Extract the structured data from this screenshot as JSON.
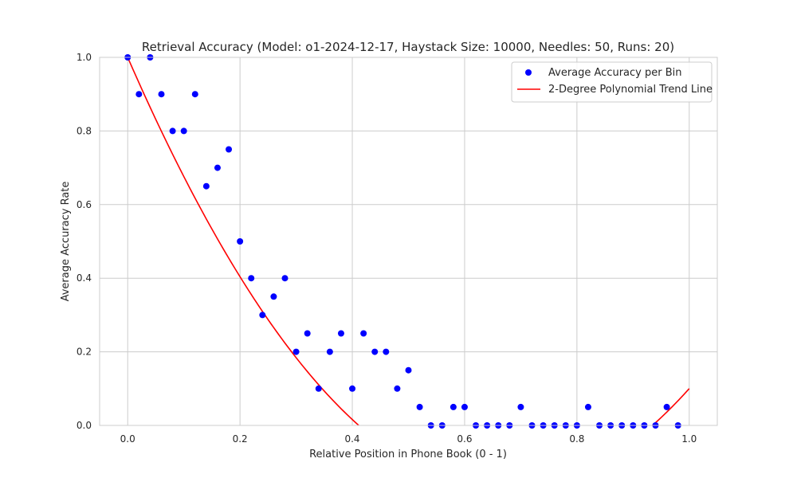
{
  "chart_data": {
    "type": "scatter",
    "title": "Retrieval Accuracy (Model: o1-2024-12-17, Haystack Size: 10000, Needles: 50, Runs: 20)",
    "xlabel": "Relative Position in Phone Book (0 - 1)",
    "ylabel": "Average Accuracy Rate",
    "xlim": [
      -0.05,
      1.05
    ],
    "ylim": [
      0.0,
      1.0
    ],
    "xticks": [
      0.0,
      0.2,
      0.4,
      0.6,
      0.8,
      1.0
    ],
    "xtick_labels": [
      "0.0",
      "0.2",
      "0.4",
      "0.6",
      "0.8",
      "1.0"
    ],
    "yticks": [
      0.0,
      0.2,
      0.4,
      0.6,
      0.8,
      1.0
    ],
    "ytick_labels": [
      "0.0",
      "0.2",
      "0.4",
      "0.6",
      "0.8",
      "1.0"
    ],
    "grid": true,
    "legend_position": "top-right",
    "series": [
      {
        "name": "Average Accuracy per Bin",
        "kind": "scatter",
        "color": "#0000ff",
        "x": [
          0.0,
          0.02,
          0.04,
          0.06,
          0.08,
          0.1,
          0.12,
          0.14,
          0.16,
          0.18,
          0.2,
          0.22,
          0.24,
          0.26,
          0.28,
          0.3,
          0.32,
          0.34,
          0.36,
          0.38,
          0.4,
          0.42,
          0.44,
          0.46,
          0.48,
          0.5,
          0.52,
          0.54,
          0.56,
          0.58,
          0.6,
          0.62,
          0.64,
          0.66,
          0.68,
          0.7,
          0.72,
          0.74,
          0.76,
          0.78,
          0.8,
          0.82,
          0.84,
          0.86,
          0.88,
          0.9,
          0.92,
          0.94,
          0.96,
          0.98
        ],
        "y": [
          1.0,
          0.9,
          1.0,
          0.9,
          0.8,
          0.8,
          0.9,
          0.65,
          0.7,
          0.75,
          0.5,
          0.4,
          0.3,
          0.35,
          0.4,
          0.2,
          0.25,
          0.1,
          0.2,
          0.25,
          0.1,
          0.25,
          0.2,
          0.2,
          0.1,
          0.15,
          0.05,
          0.0,
          0.0,
          0.05,
          0.05,
          0.0,
          0.0,
          0.0,
          0.0,
          0.05,
          0.0,
          0.0,
          0.0,
          0.0,
          0.0,
          0.05,
          0.0,
          0.0,
          0.0,
          0.0,
          0.0,
          0.0,
          0.05,
          0.0
        ]
      },
      {
        "name": "2-Degree Polynomial Trend Line",
        "kind": "line",
        "color": "#ff0000",
        "coefficients": [
          2.6,
          -3.5,
          1.0
        ],
        "x_range": [
          0.0,
          1.0
        ]
      }
    ]
  }
}
